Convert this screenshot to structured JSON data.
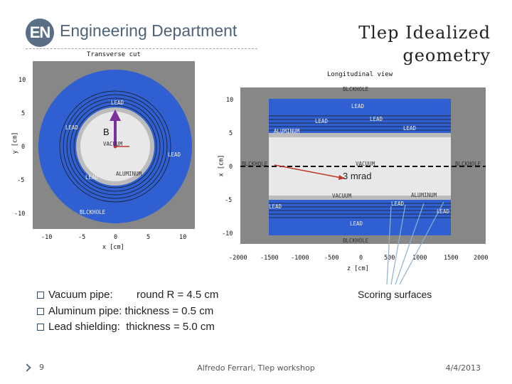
{
  "header": {
    "logo_text": "EN",
    "department": "Engineering Department",
    "title_line1": "Tlep Idealized",
    "title_line2": "geometry"
  },
  "transverse": {
    "title": "Transverse cut",
    "xlabel": "x [cm]",
    "ylabel": "y [cm]",
    "x_ticks": [
      "-10",
      "-5",
      "0",
      "5",
      "10"
    ],
    "y_ticks": [
      "10",
      "5",
      "0",
      "-5",
      "-10"
    ],
    "regions": {
      "lead_top": "LEAD",
      "lead_left": "LEAD",
      "lead_right": "LEAD",
      "lead_lower": "LEAD",
      "vacuum": "VACUUM",
      "aluminum": "ALUMINUM",
      "blackhole": "BLCKHOLE"
    },
    "field_label": "B"
  },
  "longitudinal": {
    "title": "Longitudinal view",
    "xlabel": "z [cm]",
    "ylabel": "x [cm]",
    "x_ticks": [
      "-2000",
      "-1500",
      "-1000",
      "-500",
      "0",
      "500",
      "1000",
      "1500",
      "2000"
    ],
    "y_ticks": [
      "10",
      "5",
      "0",
      "-5",
      "-10"
    ],
    "regions": {
      "blackhole_top": "BLCKHOLE",
      "lead_1": "LEAD",
      "lead_2": "LEAD",
      "lead_3": "LEAD",
      "lead_4": "LEAD",
      "aluminum_top": "ALUMINUM",
      "blackhole_left": "BLCKHOLE",
      "vacuum": "VACUUM",
      "blackhole_right": "BLCKHOLE",
      "vacuum_low": "VACUUM",
      "aluminum_low": "ALUMINUM",
      "lead_5": "LEAD",
      "lead_6": "LEAD",
      "lead_7": "LEAD",
      "lead_8": "LEAD",
      "blackhole_bottom": "BLCKHOLE"
    },
    "angle_label": "3 mrad"
  },
  "annotations": {
    "scoring": "Scoring surfaces"
  },
  "bullets": [
    "Vacuum pipe:        round R = 4.5 cm",
    "Aluminum pipe: thickness = 0.5 cm",
    "Lead shielding:  thickness = 5.0 cm"
  ],
  "footer": {
    "page": "9",
    "center": "Alfredo Ferrari, Tlep workshop",
    "date": "4/4/2013"
  },
  "colors": {
    "lead": "#2f5fd0",
    "vacuum": "#e8e8e8",
    "aluminum": "#b9b9b9",
    "blackhole": "#878787",
    "arrow": "#7b2f9c",
    "beam_line": "#c0392b"
  }
}
